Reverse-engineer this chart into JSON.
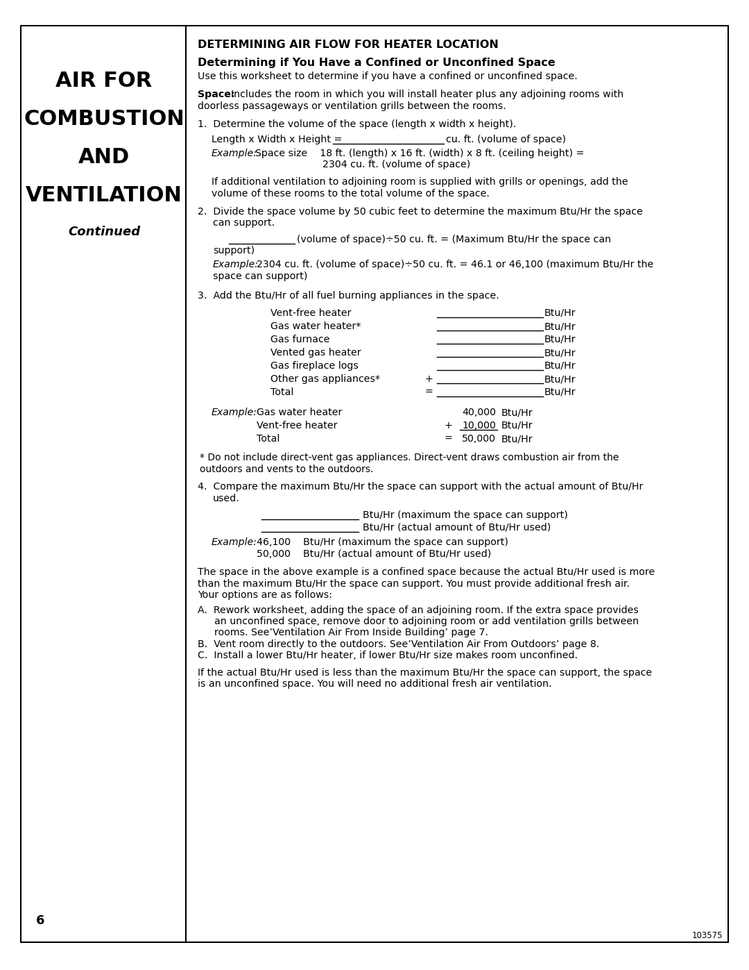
{
  "page_bg": "#ffffff",
  "left_title_lines": [
    "AIR FOR",
    "COMBUSTION",
    "AND",
    "VENTILATION"
  ],
  "left_subtitle": "Continued",
  "main_title": "DETERMINING AIR FLOW FOR HEATER LOCATION",
  "section_title": "Determining if You Have a Confined or Unconfined Space",
  "section_note": "Use this worksheet to determine if you have a confined or unconfined space.",
  "page_number": "6",
  "doc_number": "103575"
}
